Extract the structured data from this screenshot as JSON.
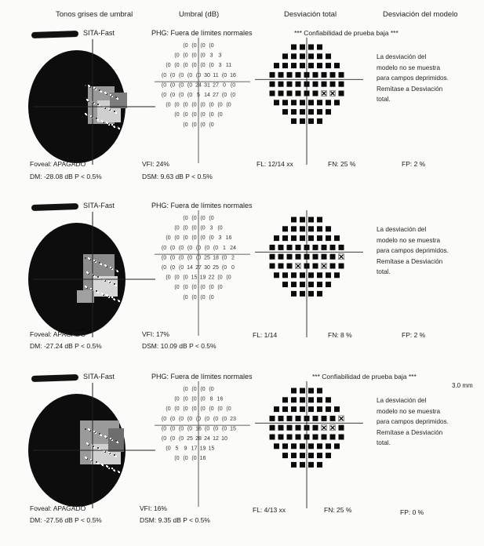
{
  "headers": {
    "gray": "Tonos grises de umbral",
    "umbral": "Umbral (dB)",
    "total": "Desviación total",
    "modelo": "Desviación del modelo"
  },
  "sections": [
    {
      "sita": "SITA-Fast",
      "phg": "PHG: Fuera de límites normales",
      "reliability": "*** Confiabilidad de prueba baja ***",
      "extra": "",
      "rows": [
        [
          "(0",
          "(0",
          "(0",
          "(0"
        ],
        [
          "(0",
          "(0",
          "(0",
          "(0",
          "3",
          "3"
        ],
        [
          "(0",
          "(0",
          "(0",
          "(0",
          "(0",
          "(0",
          "3",
          "11"
        ],
        [
          "(0",
          "(0",
          "(0",
          "(0",
          "(0",
          "30",
          "11",
          "(0",
          "16"
        ],
        [
          "(0",
          "(0",
          "(0",
          "(0",
          "24",
          "31",
          "27",
          "0",
          "(0"
        ],
        [
          "(0",
          "(0",
          "(0",
          "(0",
          "5",
          "14",
          "27",
          "(0",
          "(0"
        ],
        [
          "(0",
          "(0",
          "(0",
          "(0",
          "(0",
          "(0",
          "(0",
          "(0"
        ],
        [
          "(0",
          "(0",
          "(0",
          "(0",
          "(0",
          "(0"
        ],
        [
          "(0",
          "(0",
          "(0",
          "(0"
        ]
      ],
      "message": [
        "La desviación del",
        "modelo no se muestra",
        "para campos deprimidos.",
        "Remítase a Desviación",
        "total."
      ],
      "foveal": "Foveal: APAGADO",
      "dm": "DM: -28.08 dB  P < 0.5%",
      "vfi": "VFI:  24%",
      "dsm": "DSM:  9.63 dB  P < 0.5%",
      "fl": "FL: 12/14 xx",
      "fn": "FN:  25 %",
      "fp": "FP:   2 %"
    },
    {
      "sita": "SITA-Fast",
      "phg": "PHG: Fuera de límites normales",
      "reliability": "",
      "extra": "",
      "rows": [
        [
          "(0",
          "(0",
          "(0",
          "(0"
        ],
        [
          "(0",
          "(0",
          "(0",
          "(0",
          "3",
          "(0"
        ],
        [
          "(0",
          "(0",
          "(0",
          "(0",
          "(0",
          "(0",
          "3",
          "16"
        ],
        [
          "(0",
          "(0",
          "(0",
          "(0",
          "(0",
          "(0",
          "(0",
          "1",
          "24"
        ],
        [
          "(0",
          "(0",
          "(0",
          "(0",
          "(0",
          "25",
          "18",
          "(0",
          "2"
        ],
        [
          "(0",
          "(0",
          "(0",
          "14",
          "27",
          "30",
          "25",
          "(0",
          "0"
        ],
        [
          "(0",
          "(0",
          "(0",
          "15",
          "19",
          "22",
          "(0",
          "(0"
        ],
        [
          "(0",
          "(0",
          "(0",
          "(0",
          "(0",
          "(0"
        ],
        [
          "(0",
          "(0",
          "(0",
          "(0"
        ]
      ],
      "message": [
        "La desviación del",
        "modelo no se muestra",
        "para campos deprimidos.",
        "Remítase a Desviación",
        "total."
      ],
      "foveal": "Foveal: APAGADO",
      "dm": "DM: -27.24 dB  P < 0.5%",
      "vfi": "VFI:  17%",
      "dsm": "DSM:  10.09 dB  P < 0.5%",
      "fl": "FL: 1/14",
      "fn": "FN:   8 %",
      "fp": "FP:   2 %"
    },
    {
      "sita": "SITA-Fast",
      "phg": "PHG: Fuera de límites normales",
      "reliability": "*** Confiabilidad de prueba baja ***",
      "extra": "3.0 mm",
      "rows": [
        [
          "(0",
          "(0",
          "(0",
          "(0"
        ],
        [
          "(0",
          "(0",
          "(0",
          "(0",
          "8",
          "16"
        ],
        [
          "(0",
          "(0",
          "(0",
          "(0",
          "(0",
          "(0",
          "(0",
          "(0"
        ],
        [
          "(0",
          "(0",
          "(0",
          "(0",
          "(0",
          "(0",
          "(0",
          "(0",
          "23"
        ],
        [
          "(0",
          "(0",
          "(0",
          "(0",
          "16",
          "(0",
          "(0",
          "(0",
          "15"
        ],
        [
          "(0",
          "(0",
          "(0",
          "25",
          "28",
          "24",
          "12",
          "10"
        ],
        [
          "(0",
          "5",
          "9",
          "17",
          "19",
          "15"
        ],
        [
          "(0",
          "(0",
          "(0",
          "16"
        ],
        []
      ],
      "message": [
        "La desviación del",
        "modelo no se muestra",
        "para campos deprimidos.",
        "Remítase a Desviación",
        "total."
      ],
      "foveal": "Foveal: APAGADO",
      "dm": "DM: -27.56 dB  P < 0.5%",
      "vfi": "VFI:  16%",
      "dsm": "DSM:  9.35 dB  P < 0.5%",
      "fl": "FL: 4/13 xx",
      "fn": "FN:  25 %",
      "fp": "FP:   0 %"
    }
  ]
}
